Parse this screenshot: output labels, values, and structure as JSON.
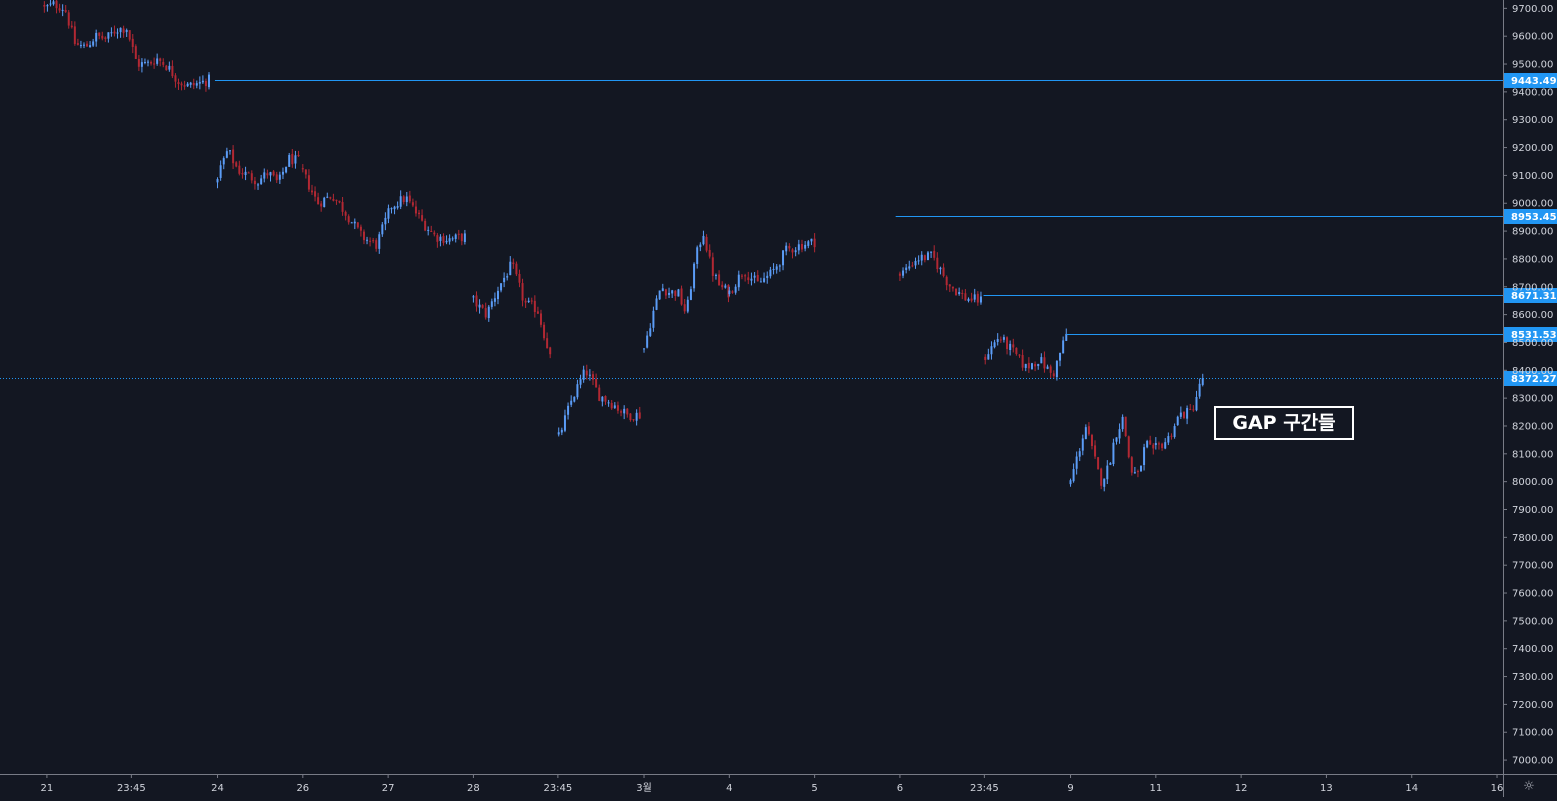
{
  "chart_data": {
    "type": "candlestick",
    "ylim": [
      6950,
      9730
    ],
    "price_ticks": [
      7000,
      7100,
      7200,
      7300,
      7400,
      7500,
      7600,
      7700,
      7800,
      7900,
      8000,
      8100,
      8200,
      8300,
      8400,
      8500,
      8600,
      8700,
      8800,
      8900,
      9000,
      9100,
      9200,
      9300,
      9400,
      9500,
      9600,
      9700
    ],
    "price_tick_labels": [
      "7000.00",
      "7100.00",
      "7200.00",
      "7300.00",
      "7400.00",
      "7500.00",
      "7600.00",
      "7700.00",
      "7800.00",
      "7900.00",
      "8000.00",
      "8100.00",
      "8200.00",
      "8300.00",
      "8400.00",
      "8500.00",
      "8600.00",
      "8700.00",
      "8800.00",
      "8900.00",
      "9000.00",
      "9100.00",
      "9200.00",
      "9300.00",
      "9400.00",
      "9500.00",
      "9600.00",
      "9700.00"
    ],
    "time_ticks": [
      {
        "label": "21",
        "t": 0.0
      },
      {
        "label": "23:45",
        "t": 0.99
      },
      {
        "label": "24",
        "t": 2.0
      },
      {
        "label": "26",
        "t": 3.0
      },
      {
        "label": "27",
        "t": 4.0
      },
      {
        "label": "28",
        "t": 5.0
      },
      {
        "label": "23:45",
        "t": 5.99
      },
      {
        "label": "3월",
        "t": 7.0
      },
      {
        "label": "4",
        "t": 8.0
      },
      {
        "label": "5",
        "t": 9.0
      },
      {
        "label": "6",
        "t": 10.0
      },
      {
        "label": "23:45",
        "t": 10.99
      },
      {
        "label": "9",
        "t": 12.0
      },
      {
        "label": "11",
        "t": 13.0
      },
      {
        "label": "12",
        "t": 14.0
      },
      {
        "label": "13",
        "t": 15.0
      },
      {
        "label": "14",
        "t": 16.0
      },
      {
        "label": "16",
        "t": 17.0
      }
    ],
    "xlim": [
      -0.55,
      17.07
    ],
    "up_color": "#5b9cf6",
    "down_color": "#b22833",
    "segments": [
      {
        "t0": -0.03,
        "t1": 1.9,
        "points": [
          9700,
          9715,
          9700,
          9570,
          9560,
          9600,
          9590,
          9625,
          9630,
          9500,
          9500,
          9520,
          9490,
          9440,
          9420,
          9430,
          9443
        ]
      },
      {
        "t0": 2.0,
        "t1": 2.95,
        "points": [
          9100,
          9190,
          9120,
          9100,
          9080,
          9110,
          9070,
          9160,
          9150
        ]
      },
      {
        "t0": 3.0,
        "t1": 4.9,
        "points": [
          9110,
          9000,
          9030,
          8960,
          8880,
          8850,
          8990,
          9020,
          8940,
          8880,
          8870,
          8880
        ]
      },
      {
        "t0": 5.0,
        "t1": 5.9,
        "points": [
          8650,
          8600,
          8700,
          8780,
          8640,
          8620,
          8450
        ]
      },
      {
        "t0": 6.0,
        "t1": 6.95,
        "points": [
          8160,
          8300,
          8400,
          8310,
          8280,
          8240,
          8240
        ]
      },
      {
        "t0": 7.0,
        "t1": 7.99,
        "points": [
          8480,
          8600,
          8700,
          8680,
          8680,
          8600,
          8790,
          8900,
          8760,
          8700,
          8680
        ]
      },
      {
        "t0": 8.0,
        "t1": 9.0,
        "points": [
          8680,
          8760,
          8710,
          8750,
          8830,
          8850,
          8862
        ]
      },
      {
        "t0": 10.0,
        "t1": 10.95,
        "points": [
          8740,
          8800,
          8810,
          8710,
          8660,
          8650
        ]
      },
      {
        "t0": 11.0,
        "t1": 11.95,
        "points": [
          8450,
          8520,
          8470,
          8410,
          8440,
          8380,
          8530
        ]
      },
      {
        "t0": 12.0,
        "t1": 12.97,
        "points": [
          8000,
          8100,
          8200,
          8100,
          8000,
          8050,
          8170,
          8230,
          8040,
          8020,
          8140,
          8100
        ]
      },
      {
        "t0": 13.0,
        "t1": 13.55,
        "points": [
          8120,
          8150,
          8240,
          8250,
          8372
        ]
      }
    ],
    "levels": [
      {
        "value": 9443.49,
        "label": "9443.49",
        "t0": 1.97,
        "style": "solid"
      },
      {
        "value": 8953.45,
        "label": "8953.45",
        "t0": 9.95,
        "style": "solid"
      },
      {
        "value": 8671.31,
        "label": "8671.31",
        "t0": 10.98,
        "style": "solid"
      },
      {
        "value": 8531.53,
        "label": "8531.53",
        "t0": 11.95,
        "style": "solid"
      },
      {
        "value": 8372.27,
        "label": "8372.27",
        "t0": -0.55,
        "style": "dotted"
      }
    ],
    "annotations": [
      {
        "text": "GAP 구간들"
      }
    ]
  },
  "ui": {
    "settings_icon": "gear-icon",
    "settings_glyph": "☼"
  }
}
